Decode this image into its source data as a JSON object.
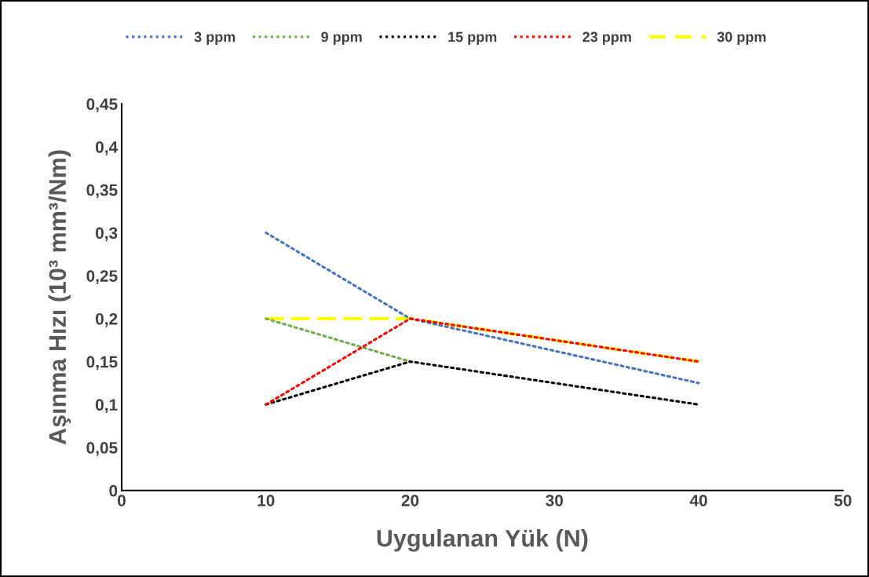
{
  "chart_data": {
    "type": "line",
    "xlabel": "Uygulanan Yük (N)",
    "ylabel": "Aşınma Hızı (10³ mm³/Nm)",
    "xlim": [
      0,
      50
    ],
    "xticks": [
      0,
      10,
      20,
      30,
      40,
      50
    ],
    "ylim": [
      0,
      0.45
    ],
    "yticks": [
      0,
      {
        "value": 0.05,
        "label": "0,05"
      },
      {
        "value": 0.1,
        "label": "0,1"
      },
      {
        "value": 0.15,
        "label": "0,15"
      },
      {
        "value": 0.2,
        "label": "0,2"
      },
      {
        "value": 0.25,
        "label": "0,25"
      },
      {
        "value": 0.3,
        "label": "0,3"
      },
      {
        "value": 0.35,
        "label": "0,35"
      },
      {
        "value": 0.4,
        "label": "0,4"
      },
      {
        "value": 0.45,
        "label": "0,45"
      }
    ],
    "grid": false,
    "legend": "top",
    "marker": "none",
    "series": [
      {
        "name": "3 ppm",
        "color": "#4472c4",
        "line_style": "dotted",
        "x": [
          10,
          20,
          40
        ],
        "values": [
          0.3,
          0.2,
          0.125
        ]
      },
      {
        "name": "9 ppm",
        "color": "#70ad47",
        "line_style": "dotted",
        "x": [
          10,
          20
        ],
        "values": [
          0.2,
          0.15
        ]
      },
      {
        "name": "15 ppm",
        "color": "#000000",
        "line_style": "dotted",
        "x": [
          10,
          20,
          40
        ],
        "values": [
          0.1,
          0.15,
          0.1
        ]
      },
      {
        "name": "23 ppm",
        "color": "#ff0000",
        "line_style": "dotted",
        "x": [
          10,
          20,
          40
        ],
        "values": [
          0.1,
          0.2,
          0.15
        ]
      },
      {
        "name": "30 ppm",
        "color": "#ffff00",
        "line_style": "dashed",
        "x": [
          10,
          20,
          40
        ],
        "values": [
          0.2,
          0.2,
          0.15
        ]
      }
    ]
  }
}
